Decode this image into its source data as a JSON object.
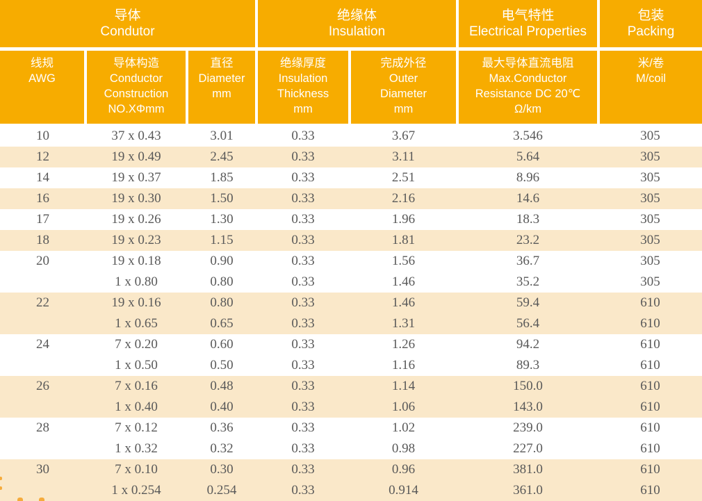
{
  "header_groups": [
    {
      "zh": "导体",
      "en": "Condutor"
    },
    {
      "zh": "绝缘体",
      "en": "Insulation"
    },
    {
      "zh": "电气特性",
      "en": "Electrical Properties"
    },
    {
      "zh": "包装",
      "en": "Packing"
    }
  ],
  "columns": [
    {
      "id": "awg",
      "lines": [
        "线规",
        "AWG"
      ]
    },
    {
      "id": "construction",
      "lines": [
        "导体构造",
        "Conductor",
        "Construction",
        "NO.XΦmm"
      ]
    },
    {
      "id": "diameter",
      "lines": [
        "直径",
        "Diameter",
        "mm"
      ]
    },
    {
      "id": "thickness",
      "lines": [
        "绝缘厚度",
        "Insulation",
        "Thickness",
        "mm"
      ]
    },
    {
      "id": "outer",
      "lines": [
        "完成外径",
        "Outer",
        "Diameter",
        "mm"
      ]
    },
    {
      "id": "resistance",
      "lines": [
        "最大导体直流电阻",
        "Max.Conductor",
        "Resistance DC 20℃",
        "Ω/km"
      ]
    },
    {
      "id": "coil",
      "lines": [
        "米/卷",
        "M/coil"
      ]
    }
  ],
  "rows": [
    {
      "awg": "10",
      "construction": "37 x 0.43",
      "diameter": "3.01",
      "thickness": "0.33",
      "outer": "3.67",
      "resistance": "3.546",
      "coil": "305",
      "shaded": false
    },
    {
      "awg": "12",
      "construction": "19 x 0.49",
      "diameter": "2.45",
      "thickness": "0.33",
      "outer": "3.11",
      "resistance": "5.64",
      "coil": "305",
      "shaded": true
    },
    {
      "awg": "14",
      "construction": "19 x 0.37",
      "diameter": "1.85",
      "thickness": "0.33",
      "outer": "2.51",
      "resistance": "8.96",
      "coil": "305",
      "shaded": false
    },
    {
      "awg": "16",
      "construction": "19 x 0.30",
      "diameter": "1.50",
      "thickness": "0.33",
      "outer": "2.16",
      "resistance": "14.6",
      "coil": "305",
      "shaded": true
    },
    {
      "awg": "17",
      "construction": "19 x 0.26",
      "diameter": "1.30",
      "thickness": "0.33",
      "outer": "1.96",
      "resistance": "18.3",
      "coil": "305",
      "shaded": false
    },
    {
      "awg": "18",
      "construction": "19 x 0.23",
      "diameter": "1.15",
      "thickness": "0.33",
      "outer": "1.81",
      "resistance": "23.2",
      "coil": "305",
      "shaded": true
    },
    {
      "awg": "20",
      "construction": "19 x 0.18",
      "diameter": "0.90",
      "thickness": "0.33",
      "outer": "1.56",
      "resistance": "36.7",
      "coil": "305",
      "shaded": false
    },
    {
      "awg": "",
      "construction": "1 x 0.80",
      "diameter": "0.80",
      "thickness": "0.33",
      "outer": "1.46",
      "resistance": "35.2",
      "coil": "305",
      "shaded": false
    },
    {
      "awg": "22",
      "construction": "19 x 0.16",
      "diameter": "0.80",
      "thickness": "0.33",
      "outer": "1.46",
      "resistance": "59.4",
      "coil": "610",
      "shaded": true
    },
    {
      "awg": "",
      "construction": "1 x 0.65",
      "diameter": "0.65",
      "thickness": "0.33",
      "outer": "1.31",
      "resistance": "56.4",
      "coil": "610",
      "shaded": true
    },
    {
      "awg": "24",
      "construction": "7 x 0.20",
      "diameter": "0.60",
      "thickness": "0.33",
      "outer": "1.26",
      "resistance": "94.2",
      "coil": "610",
      "shaded": false
    },
    {
      "awg": "",
      "construction": "1 x 0.50",
      "diameter": "0.50",
      "thickness": "0.33",
      "outer": "1.16",
      "resistance": "89.3",
      "coil": "610",
      "shaded": false
    },
    {
      "awg": "26",
      "construction": "7 x 0.16",
      "diameter": "0.48",
      "thickness": "0.33",
      "outer": "1.14",
      "resistance": "150.0",
      "coil": "610",
      "shaded": true
    },
    {
      "awg": "",
      "construction": "1 x 0.40",
      "diameter": "0.40",
      "thickness": "0.33",
      "outer": "1.06",
      "resistance": "143.0",
      "coil": "610",
      "shaded": true
    },
    {
      "awg": "28",
      "construction": "7 x 0.12",
      "diameter": "0.36",
      "thickness": "0.33",
      "outer": "1.02",
      "resistance": "239.0",
      "coil": "610",
      "shaded": false
    },
    {
      "awg": "",
      "construction": "1 x 0.32",
      "diameter": "0.32",
      "thickness": "0.33",
      "outer": "0.98",
      "resistance": "227.0",
      "coil": "610",
      "shaded": false
    },
    {
      "awg": "30",
      "construction": "7 x 0.10",
      "diameter": "0.30",
      "thickness": "0.33",
      "outer": "0.96",
      "resistance": "381.0",
      "coil": "610",
      "shaded": true
    },
    {
      "awg": "",
      "construction": "1 x 0.254",
      "diameter": "0.254",
      "thickness": "0.33",
      "outer": "0.914",
      "resistance": "361.0",
      "coil": "610",
      "shaded": true
    }
  ],
  "colors": {
    "header_orange": "#F7AC00",
    "row_cream": "#FAE8C9",
    "header_text": "#FFFFFF",
    "data_text": "#595959",
    "dot_orange": "#F5AB3C"
  }
}
